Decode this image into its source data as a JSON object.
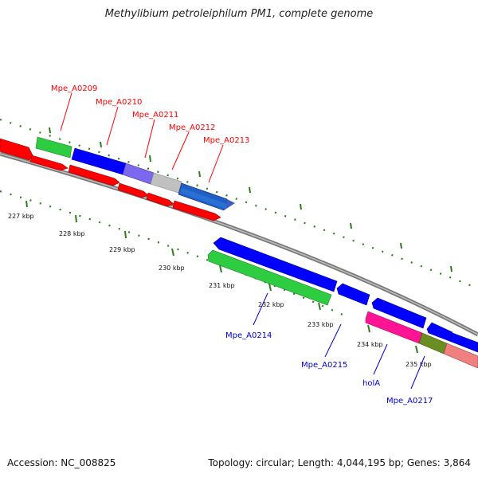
{
  "title": "Methylibium petroleiphilum PM1, complete genome",
  "footer": {
    "accession": "Accession: NC_008825",
    "stats": "Topology: circular; Length: 4,044,195 bp; Genes: 3,864"
  },
  "colors": {
    "forward_label": "#ff0000",
    "reverse_label": "#0000cc",
    "tick": "#2e7d1b",
    "backbone": "#7a7a7a"
  },
  "genes_forward": [
    {
      "label": "Mpe_A0209",
      "color": "#2ecc40"
    },
    {
      "label": "Mpe_A0210",
      "color": "#0000ff"
    },
    {
      "label": "Mpe_A0211",
      "color": "#7b68ee"
    },
    {
      "label": "Mpe_A0212",
      "color": "#c0c0c0"
    },
    {
      "label": "Mpe_A0213",
      "color": "#1e5fc8"
    }
  ],
  "genes_reverse": [
    {
      "label": "Mpe_A0214",
      "color": "#2ecc40"
    },
    {
      "label": "Mpe_A0215",
      "color": "#0000ff"
    },
    {
      "label": "holA",
      "color": "#ff1493"
    },
    {
      "label": "Mpe_A0217",
      "color": "#6b8e23"
    }
  ],
  "scale_ticks": [
    "227 kbp",
    "228 kbp",
    "229 kbp",
    "230 kbp",
    "231 kbp",
    "232 kbp",
    "233 kbp",
    "234 kbp",
    "235 kbp"
  ]
}
